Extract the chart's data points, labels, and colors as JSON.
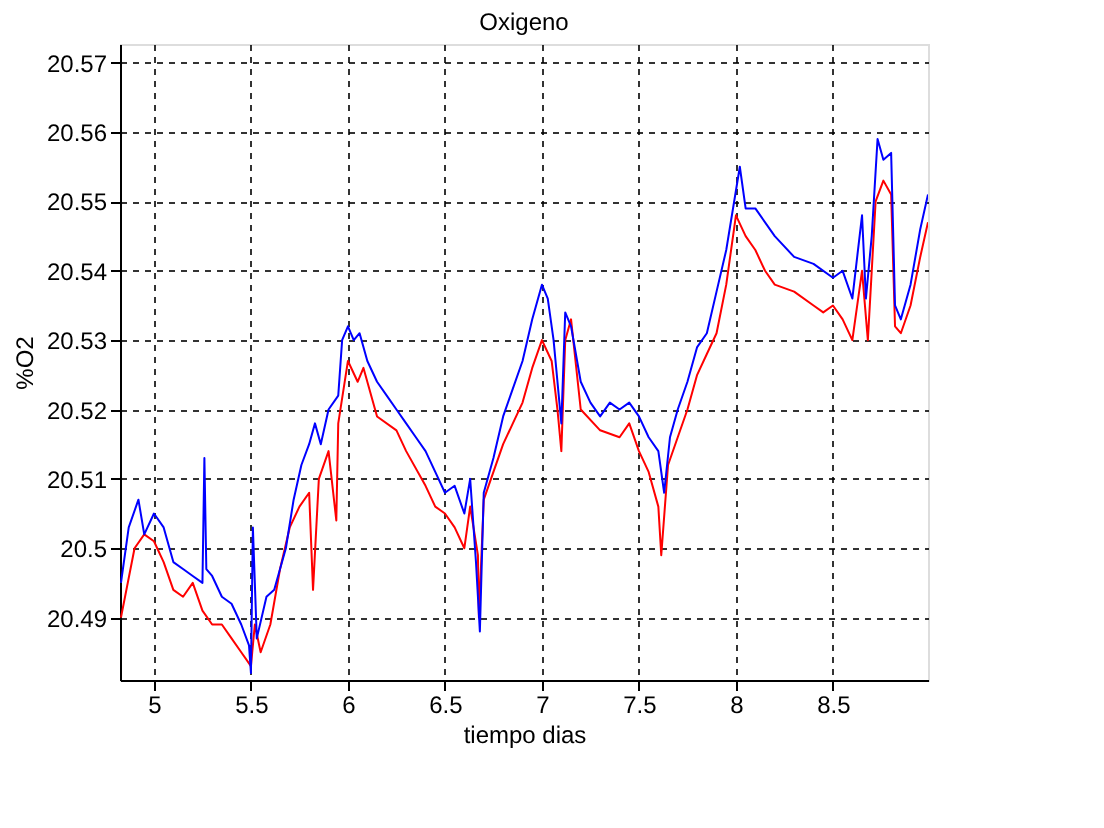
{
  "chart_data": {
    "type": "line",
    "title": "Oxigeno",
    "xlabel": "tiempo dias",
    "ylabel": "%O2",
    "xlim": [
      4.825,
      8.99
    ],
    "ylim": [
      20.481,
      20.5727
    ],
    "xticks": [
      5,
      5.5,
      6,
      6.5,
      7,
      7.5,
      8,
      8.5
    ],
    "yticks": [
      20.49,
      20.5,
      20.51,
      20.52,
      20.53,
      20.54,
      20.55,
      20.56,
      20.57
    ],
    "grid": true,
    "legend": false,
    "line_style": "solid",
    "marker": "none",
    "series": [
      {
        "color": "#ff0000",
        "x": [
          4.83,
          4.9,
          4.95,
          5.0,
          5.05,
          5.1,
          5.15,
          5.2,
          5.25,
          5.3,
          5.35,
          5.4,
          5.45,
          5.5,
          5.52,
          5.55,
          5.6,
          5.65,
          5.7,
          5.75,
          5.8,
          5.82,
          5.85,
          5.9,
          5.94,
          5.95,
          6.0,
          6.05,
          6.08,
          6.15,
          6.25,
          6.3,
          6.4,
          6.45,
          6.5,
          6.55,
          6.6,
          6.63,
          6.67,
          6.675,
          6.7,
          6.75,
          6.8,
          6.85,
          6.9,
          6.95,
          7.0,
          7.05,
          7.08,
          7.1,
          7.12,
          7.15,
          7.2,
          7.3,
          7.4,
          7.45,
          7.5,
          7.55,
          7.6,
          7.615,
          7.65,
          7.7,
          7.75,
          7.8,
          7.85,
          7.9,
          7.95,
          8.0,
          8.05,
          8.1,
          8.15,
          8.2,
          8.3,
          8.4,
          8.45,
          8.5,
          8.55,
          8.6,
          8.65,
          8.68,
          8.72,
          8.76,
          8.8,
          8.82,
          8.85,
          8.9,
          8.95,
          8.99
        ],
        "values": [
          20.49,
          20.5,
          20.502,
          20.501,
          20.498,
          20.494,
          20.493,
          20.495,
          20.491,
          20.489,
          20.489,
          20.487,
          20.485,
          20.483,
          20.489,
          20.485,
          20.489,
          20.497,
          20.503,
          20.506,
          20.508,
          20.494,
          20.51,
          20.514,
          20.504,
          20.518,
          20.527,
          20.524,
          20.526,
          20.519,
          20.517,
          20.514,
          20.509,
          20.506,
          20.505,
          20.503,
          20.5,
          20.506,
          20.499,
          20.49,
          20.507,
          20.511,
          20.515,
          20.518,
          20.521,
          20.526,
          20.53,
          20.527,
          20.52,
          20.514,
          20.53,
          20.533,
          20.52,
          20.517,
          20.516,
          20.518,
          20.514,
          20.511,
          20.506,
          20.499,
          20.512,
          20.516,
          20.52,
          20.525,
          20.528,
          20.531,
          20.538,
          20.548,
          20.545,
          20.543,
          20.54,
          20.538,
          20.537,
          20.535,
          20.534,
          20.535,
          20.533,
          20.53,
          20.54,
          20.53,
          20.55,
          20.553,
          20.551,
          20.532,
          20.531,
          20.535,
          20.542,
          20.547
        ]
      },
      {
        "color": "#0000ff",
        "x": [
          4.83,
          4.87,
          4.92,
          4.95,
          5.0,
          5.05,
          5.1,
          5.15,
          5.2,
          5.25,
          5.26,
          5.27,
          5.3,
          5.35,
          5.4,
          5.45,
          5.49,
          5.5,
          5.51,
          5.53,
          5.58,
          5.62,
          5.68,
          5.72,
          5.76,
          5.8,
          5.83,
          5.86,
          5.9,
          5.95,
          5.97,
          6.0,
          6.03,
          6.06,
          6.1,
          6.15,
          6.2,
          6.25,
          6.3,
          6.35,
          6.4,
          6.45,
          6.5,
          6.55,
          6.6,
          6.63,
          6.66,
          6.68,
          6.7,
          6.75,
          6.8,
          6.85,
          6.9,
          6.95,
          7.0,
          7.03,
          7.06,
          7.1,
          7.12,
          7.15,
          7.2,
          7.25,
          7.3,
          7.35,
          7.4,
          7.45,
          7.5,
          7.55,
          7.6,
          7.63,
          7.66,
          7.7,
          7.75,
          7.8,
          7.85,
          7.9,
          7.95,
          8.02,
          8.05,
          8.1,
          8.2,
          8.3,
          8.4,
          8.5,
          8.55,
          8.6,
          8.65,
          8.67,
          8.7,
          8.73,
          8.76,
          8.8,
          8.82,
          8.85,
          8.9,
          8.95,
          8.99
        ],
        "values": [
          20.495,
          20.503,
          20.507,
          20.502,
          20.505,
          20.503,
          20.498,
          20.497,
          20.496,
          20.495,
          20.513,
          20.497,
          20.496,
          20.493,
          20.492,
          20.489,
          20.486,
          20.482,
          20.503,
          20.487,
          20.493,
          20.494,
          20.5,
          20.507,
          20.512,
          20.515,
          20.518,
          20.515,
          20.52,
          20.522,
          20.53,
          20.532,
          20.53,
          20.531,
          20.527,
          20.524,
          20.522,
          20.52,
          20.518,
          20.516,
          20.514,
          20.511,
          20.508,
          20.509,
          20.505,
          20.51,
          20.498,
          20.488,
          20.508,
          20.513,
          20.519,
          20.523,
          20.527,
          20.533,
          20.538,
          20.536,
          20.53,
          20.518,
          20.534,
          20.532,
          20.524,
          20.521,
          20.519,
          20.521,
          20.52,
          20.521,
          20.519,
          20.516,
          20.514,
          20.508,
          20.516,
          20.52,
          20.524,
          20.529,
          20.531,
          20.537,
          20.543,
          20.555,
          20.549,
          20.549,
          20.545,
          20.542,
          20.541,
          20.539,
          20.54,
          20.536,
          20.548,
          20.536,
          20.545,
          20.559,
          20.556,
          20.557,
          20.535,
          20.533,
          20.538,
          20.546,
          20.551
        ]
      }
    ]
  }
}
